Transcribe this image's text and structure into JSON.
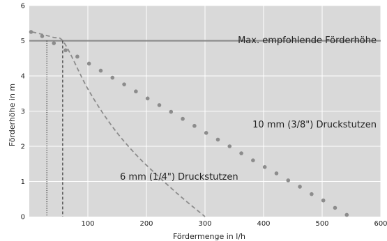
{
  "chart_data": {
    "type": "line",
    "title": "",
    "xlabel": "Fördermenge in l/h",
    "ylabel": "Förderhöhe in m",
    "xlim": [
      0,
      600
    ],
    "ylim": [
      0,
      6
    ],
    "xticks": [
      "100",
      "200",
      "300",
      "400",
      "500",
      "600"
    ],
    "yticks": [
      "0",
      "1",
      "2",
      "3",
      "4",
      "5",
      "6"
    ],
    "grid": true,
    "background": "#d9d9d9",
    "series": [
      {
        "name": "10 mm (3/8\") Druckstutzen",
        "style": "dotted-markers",
        "color": "#8c8c8c",
        "x": [
          3,
          22,
          42,
          62,
          82,
          102,
          122,
          142,
          162,
          182,
          202,
          222,
          242,
          262,
          282,
          302,
          322,
          342,
          362,
          382,
          402,
          422,
          442,
          462,
          482,
          502,
          522,
          542
        ],
        "y": [
          5.25,
          5.13,
          4.93,
          4.73,
          4.55,
          4.35,
          4.15,
          3.95,
          3.76,
          3.56,
          3.36,
          3.17,
          2.98,
          2.78,
          2.58,
          2.38,
          2.19,
          2.0,
          1.8,
          1.6,
          1.41,
          1.23,
          1.03,
          0.85,
          0.64,
          0.46,
          0.25,
          0.05
        ]
      },
      {
        "name": "6 mm (1/4\") Druckstutzen",
        "style": "dashed",
        "color": "#8c8c8c",
        "x": [
          5,
          40,
          60,
          100,
          140,
          180,
          220,
          260,
          300
        ],
        "y": [
          5.25,
          5.1,
          4.93,
          3.63,
          2.6,
          1.8,
          1.15,
          0.55,
          0.0
        ]
      }
    ],
    "reference_line": {
      "y": 5,
      "label": "Max. empfohlende Förderhöhe",
      "color": "#8c8c8c"
    },
    "drop_lines": [
      {
        "x": 30,
        "y": 5,
        "style": "dotted"
      },
      {
        "x": 57,
        "y": 5,
        "style": "dashed"
      }
    ]
  }
}
